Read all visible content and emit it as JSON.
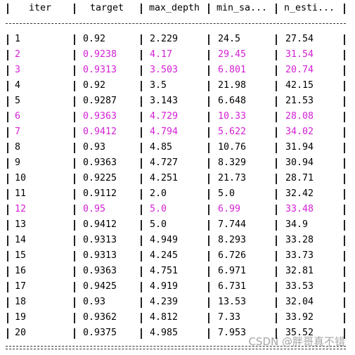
{
  "table": {
    "header": [
      "iter",
      "target",
      "max_depth",
      "min_sa...",
      "n_esti..."
    ],
    "rows": [
      {
        "color": "#000000",
        "cells": [
          "1",
          "0.92",
          "2.229",
          "24.5",
          "27.54"
        ]
      },
      {
        "color": "#d41fd4",
        "cells": [
          "2",
          "0.9238",
          "4.17",
          "29.45",
          "31.54"
        ]
      },
      {
        "color": "#d41fd4",
        "cells": [
          "3",
          "0.9313",
          "3.503",
          "6.801",
          "20.74"
        ]
      },
      {
        "color": "#000000",
        "cells": [
          "4",
          "0.92",
          "3.5",
          "21.98",
          "42.15"
        ]
      },
      {
        "color": "#000000",
        "cells": [
          "5",
          "0.9287",
          "3.143",
          "6.648",
          "21.53"
        ]
      },
      {
        "color": "#d41fd4",
        "cells": [
          "6",
          "0.9363",
          "4.729",
          "10.33",
          "28.08"
        ]
      },
      {
        "color": "#d41fd4",
        "cells": [
          "7",
          "0.9412",
          "4.794",
          "5.622",
          "34.02"
        ]
      },
      {
        "color": "#000000",
        "cells": [
          "8",
          "0.93",
          "4.85",
          "10.76",
          "31.94"
        ]
      },
      {
        "color": "#000000",
        "cells": [
          "9",
          "0.9363",
          "4.727",
          "8.329",
          "30.94"
        ]
      },
      {
        "color": "#000000",
        "cells": [
          "10",
          "0.9225",
          "4.251",
          "21.73",
          "28.71"
        ]
      },
      {
        "color": "#000000",
        "cells": [
          "11",
          "0.9112",
          "2.0",
          "5.0",
          "32.42"
        ]
      },
      {
        "color": "#d41fd4",
        "cells": [
          "12",
          "0.95",
          "5.0",
          "6.99",
          "33.48"
        ]
      },
      {
        "color": "#000000",
        "cells": [
          "13",
          "0.9412",
          "5.0",
          "7.744",
          "34.9"
        ]
      },
      {
        "color": "#000000",
        "cells": [
          "14",
          "0.9313",
          "4.949",
          "8.293",
          "33.28"
        ]
      },
      {
        "color": "#000000",
        "cells": [
          "15",
          "0.9313",
          "4.245",
          "6.726",
          "33.73"
        ]
      },
      {
        "color": "#000000",
        "cells": [
          "16",
          "0.9363",
          "4.751",
          "6.971",
          "32.81"
        ]
      },
      {
        "color": "#000000",
        "cells": [
          "17",
          "0.9425",
          "4.919",
          "6.731",
          "33.53"
        ]
      },
      {
        "color": "#000000",
        "cells": [
          "18",
          "0.93",
          "4.239",
          "13.53",
          "32.04"
        ]
      },
      {
        "color": "#000000",
        "cells": [
          "19",
          "0.9362",
          "4.812",
          "7.33",
          "33.92"
        ]
      },
      {
        "color": "#000000",
        "cells": [
          "20",
          "0.9375",
          "4.985",
          "7.953",
          "35.52"
        ]
      }
    ]
  },
  "watermark": "CSDN @胖哥真不错"
}
